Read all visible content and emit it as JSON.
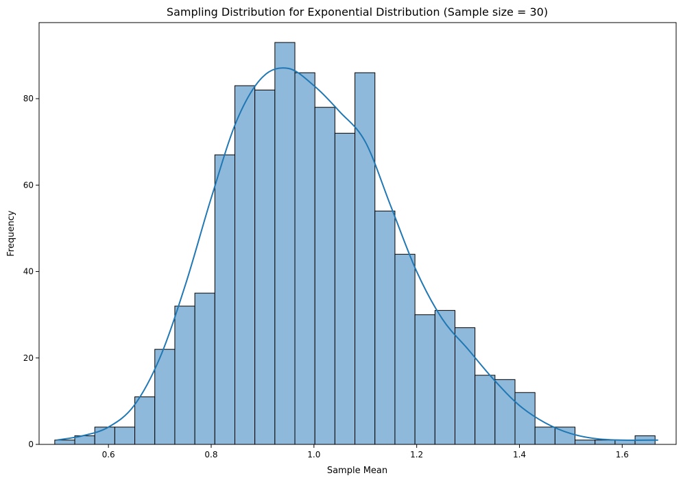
{
  "chart_data": {
    "type": "histogram",
    "title": "Sampling Distribution for Exponential Distribution (Sample size = 30)",
    "xlabel": "Sample Mean",
    "ylabel": "Frequency",
    "xlim": [
      0.465,
      1.705
    ],
    "ylim": [
      0,
      97.6
    ],
    "x_ticks": [
      0.6,
      0.8,
      1.0,
      1.2,
      1.4,
      1.6
    ],
    "x_tick_labels": [
      "0.6",
      "0.8",
      "1.0",
      "1.2",
      "1.4",
      "1.6"
    ],
    "y_ticks": [
      0,
      20,
      40,
      60,
      80
    ],
    "y_tick_labels": [
      "0",
      "20",
      "40",
      "60",
      "80"
    ],
    "grid": false,
    "bins": {
      "start": 0.4955,
      "width": 0.03895,
      "counts": [
        1,
        2,
        4,
        4,
        11,
        22,
        32,
        35,
        67,
        83,
        82,
        93,
        86,
        78,
        72,
        86,
        54,
        44,
        30,
        31,
        27,
        16,
        15,
        12,
        4,
        4,
        1,
        1,
        1,
        2
      ]
    },
    "kde": {
      "x": [
        0.5,
        0.55,
        0.6,
        0.65,
        0.7,
        0.75,
        0.8,
        0.85,
        0.9,
        0.95,
        1.0,
        1.05,
        1.1,
        1.15,
        1.2,
        1.25,
        1.3,
        1.35,
        1.4,
        1.45,
        1.5,
        1.55,
        1.6,
        1.67
      ],
      "y": [
        1,
        2,
        4,
        9,
        20,
        37,
        57,
        75,
        85,
        87,
        83,
        77,
        70,
        55,
        40,
        29,
        22,
        15,
        9,
        5,
        2.5,
        1.3,
        1,
        1
      ]
    },
    "colors": {
      "bar_fill": "#8fb9da",
      "bar_edge": "#000000",
      "kde_line": "#1f77b4"
    }
  }
}
